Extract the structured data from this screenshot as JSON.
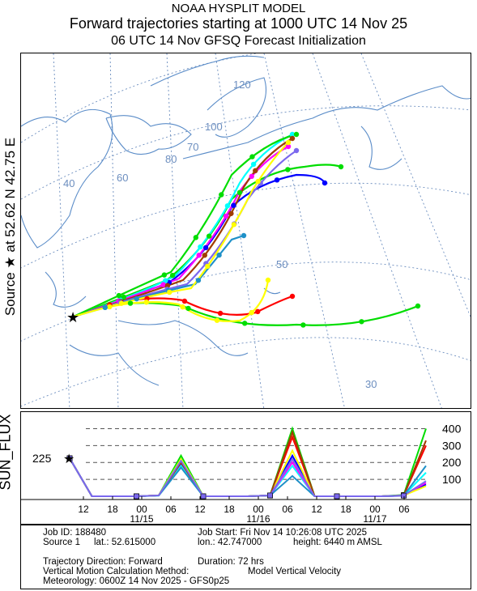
{
  "header": {
    "line1": "NOAA HYSPLIT MODEL",
    "line2": "Forward trajectories starting at 1000 UTC 14 Nov 25",
    "line3": "06 UTC 14 Nov    GFSQ  Forecast Initialization"
  },
  "side_label": "Source ★  at   52.62 N   42.75 E",
  "chart_data": {
    "type": "line",
    "ylabel": "SUN_FLUX",
    "source_value_label": "225",
    "ylim": [
      0,
      450
    ],
    "y_ticks": [
      100,
      200,
      300,
      400
    ],
    "x_ticks": [
      {
        "label": "12",
        "date": ""
      },
      {
        "label": "18",
        "date": ""
      },
      {
        "label": "00",
        "date": "11/15"
      },
      {
        "label": "06",
        "date": ""
      },
      {
        "label": "12",
        "date": ""
      },
      {
        "label": "18",
        "date": ""
      },
      {
        "label": "00",
        "date": "11/16"
      },
      {
        "label": "06",
        "date": ""
      },
      {
        "label": "12",
        "date": ""
      },
      {
        "label": "18",
        "date": ""
      },
      {
        "label": "00",
        "date": "11/17"
      },
      {
        "label": "06",
        "date": ""
      }
    ],
    "series": [
      {
        "color": "#ff0000",
        "values": [
          225,
          0,
          0,
          0,
          5,
          210,
          0,
          0,
          0,
          5,
          350,
          0,
          0,
          0,
          0,
          5,
          300
        ]
      },
      {
        "color": "#0000ff",
        "values": [
          225,
          0,
          0,
          0,
          5,
          190,
          0,
          0,
          0,
          5,
          240,
          0,
          0,
          0,
          0,
          3,
          70
        ]
      },
      {
        "color": "#00dd00",
        "values": [
          225,
          0,
          0,
          0,
          5,
          240,
          0,
          0,
          0,
          5,
          400,
          0,
          0,
          0,
          0,
          8,
          400
        ]
      },
      {
        "color": "#00ffff",
        "values": [
          225,
          0,
          0,
          0,
          4,
          180,
          0,
          0,
          0,
          5,
          180,
          0,
          0,
          0,
          0,
          4,
          140
        ]
      },
      {
        "color": "#ff00ff",
        "values": [
          225,
          0,
          0,
          0,
          5,
          200,
          0,
          0,
          0,
          5,
          200,
          0,
          0,
          0,
          0,
          4,
          80
        ]
      },
      {
        "color": "#ffff00",
        "values": [
          225,
          0,
          0,
          0,
          5,
          220,
          0,
          0,
          0,
          5,
          270,
          0,
          0,
          0,
          0,
          5,
          60
        ]
      },
      {
        "color": "#a03c00",
        "values": [
          225,
          0,
          0,
          0,
          5,
          200,
          0,
          0,
          0,
          5,
          380,
          0,
          0,
          0,
          0,
          5,
          330
        ]
      },
      {
        "color": "#1e90c8",
        "values": [
          225,
          0,
          0,
          0,
          4,
          170,
          0,
          0,
          0,
          5,
          120,
          0,
          0,
          0,
          0,
          4,
          180
        ]
      },
      {
        "color": "#7b68ee",
        "values": [
          225,
          0,
          0,
          0,
          5,
          210,
          0,
          0,
          0,
          5,
          220,
          0,
          0,
          0,
          0,
          4,
          90
        ]
      }
    ]
  },
  "map": {
    "lat_labels": [
      "40",
      "50",
      "60",
      "70",
      "80"
    ],
    "lon_labels": [
      "100",
      "120",
      "50",
      "30"
    ],
    "source_marker": "★"
  },
  "footer": {
    "job_id": "Job ID: 188480",
    "job_start": "Job Start: Fri Nov 14 10:26:08 UTC 2025",
    "source": "Source 1",
    "lat": "lat.: 52.615000",
    "lon": "lon.: 42.747000",
    "height": "height: 6440 m AMSL",
    "direction": "Trajectory Direction: Forward",
    "duration": "Duration: 72 hrs",
    "vertical_label": "Vertical Motion Calculation Method:",
    "vertical_value": "Model Vertical Velocity",
    "meteorology": "Meteorology: 0600Z 14 Nov 2025 - GFS0p25"
  }
}
